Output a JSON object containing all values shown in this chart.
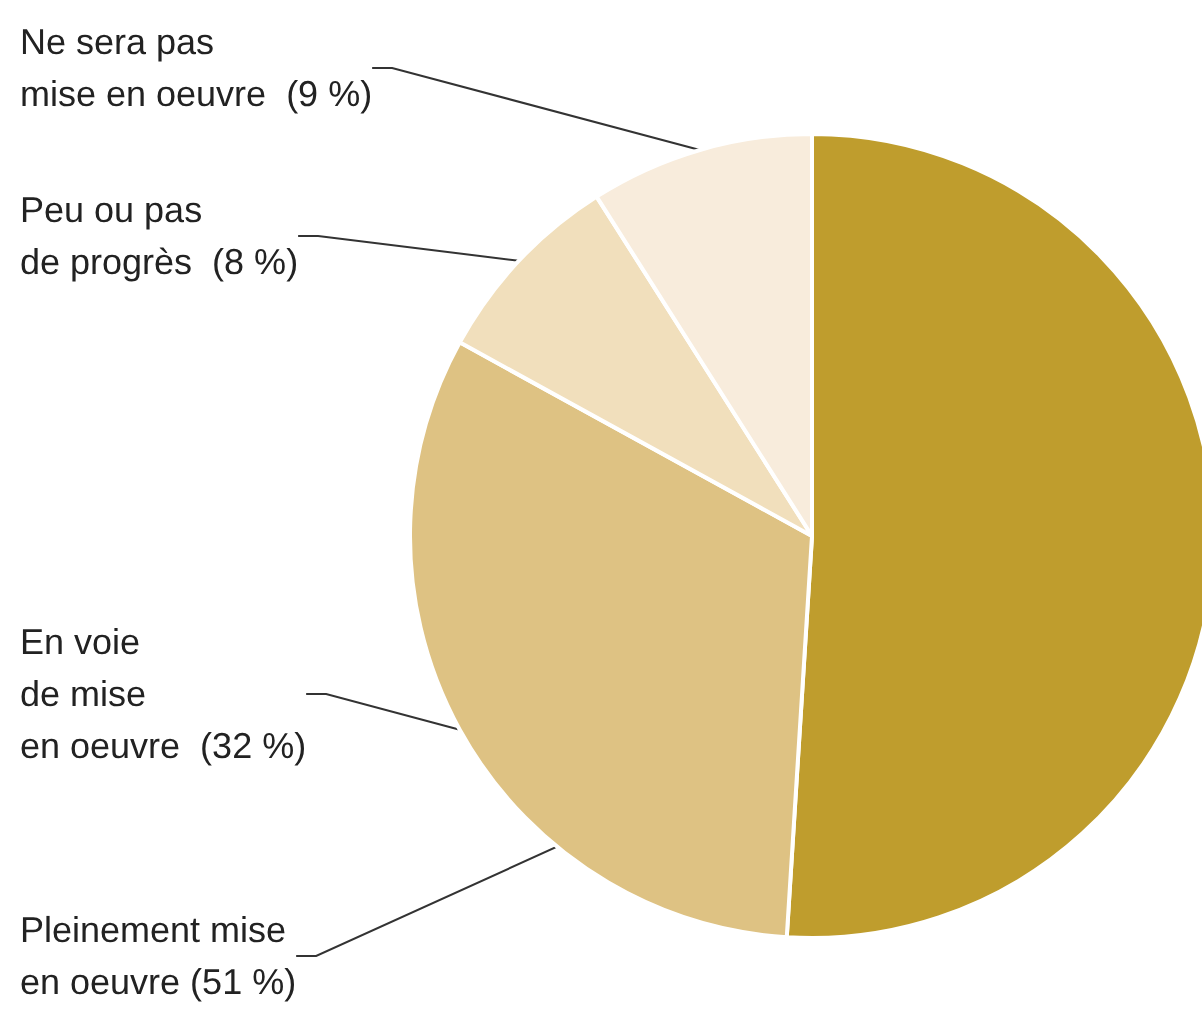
{
  "chart_data": {
    "type": "pie",
    "categories": [
      "Pleinement mise\nen oeuvre",
      "En voie\nde mise\nen oeuvre",
      "Peu ou pas\nde progrès",
      "Ne sera pas\nmise en oeuvre"
    ],
    "values": [
      51,
      32,
      8,
      9
    ],
    "value_labels": [
      "(51 %)",
      "(32 %)",
      "(8 %)",
      "(9 %)"
    ],
    "colors": [
      "#bf9d2d",
      "#dec283",
      "#f1dfbc",
      "#f8ecdc"
    ],
    "legend": false
  }
}
